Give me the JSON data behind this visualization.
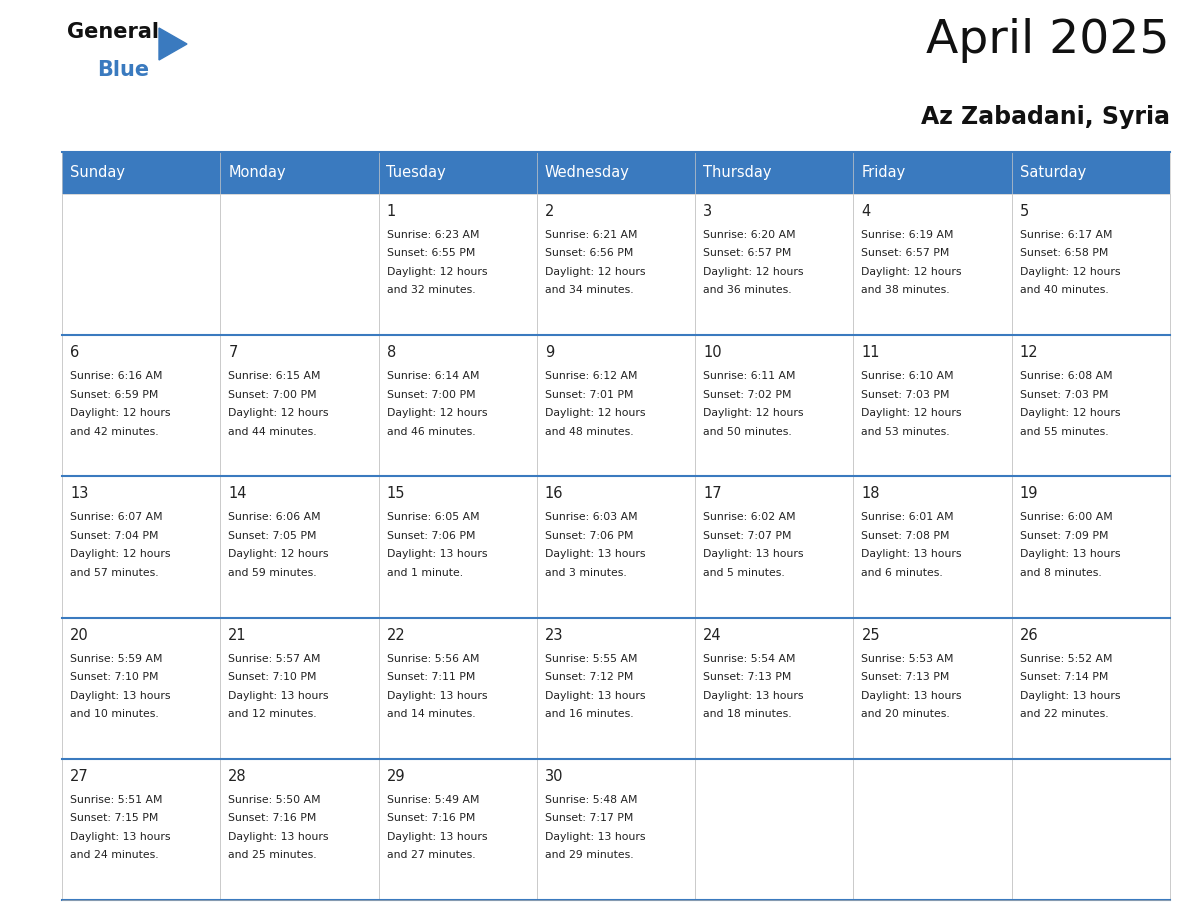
{
  "title": "April 2025",
  "subtitle": "Az Zabadani, Syria",
  "header_color": "#3a7abf",
  "header_text_color": "#ffffff",
  "border_color": "#3a7abf",
  "text_color": "#222222",
  "days_of_week": [
    "Sunday",
    "Monday",
    "Tuesday",
    "Wednesday",
    "Thursday",
    "Friday",
    "Saturday"
  ],
  "calendar_data": [
    [
      {
        "day": "",
        "lines": []
      },
      {
        "day": "",
        "lines": []
      },
      {
        "day": "1",
        "lines": [
          "Sunrise: 6:23 AM",
          "Sunset: 6:55 PM",
          "Daylight: 12 hours",
          "and 32 minutes."
        ]
      },
      {
        "day": "2",
        "lines": [
          "Sunrise: 6:21 AM",
          "Sunset: 6:56 PM",
          "Daylight: 12 hours",
          "and 34 minutes."
        ]
      },
      {
        "day": "3",
        "lines": [
          "Sunrise: 6:20 AM",
          "Sunset: 6:57 PM",
          "Daylight: 12 hours",
          "and 36 minutes."
        ]
      },
      {
        "day": "4",
        "lines": [
          "Sunrise: 6:19 AM",
          "Sunset: 6:57 PM",
          "Daylight: 12 hours",
          "and 38 minutes."
        ]
      },
      {
        "day": "5",
        "lines": [
          "Sunrise: 6:17 AM",
          "Sunset: 6:58 PM",
          "Daylight: 12 hours",
          "and 40 minutes."
        ]
      }
    ],
    [
      {
        "day": "6",
        "lines": [
          "Sunrise: 6:16 AM",
          "Sunset: 6:59 PM",
          "Daylight: 12 hours",
          "and 42 minutes."
        ]
      },
      {
        "day": "7",
        "lines": [
          "Sunrise: 6:15 AM",
          "Sunset: 7:00 PM",
          "Daylight: 12 hours",
          "and 44 minutes."
        ]
      },
      {
        "day": "8",
        "lines": [
          "Sunrise: 6:14 AM",
          "Sunset: 7:00 PM",
          "Daylight: 12 hours",
          "and 46 minutes."
        ]
      },
      {
        "day": "9",
        "lines": [
          "Sunrise: 6:12 AM",
          "Sunset: 7:01 PM",
          "Daylight: 12 hours",
          "and 48 minutes."
        ]
      },
      {
        "day": "10",
        "lines": [
          "Sunrise: 6:11 AM",
          "Sunset: 7:02 PM",
          "Daylight: 12 hours",
          "and 50 minutes."
        ]
      },
      {
        "day": "11",
        "lines": [
          "Sunrise: 6:10 AM",
          "Sunset: 7:03 PM",
          "Daylight: 12 hours",
          "and 53 minutes."
        ]
      },
      {
        "day": "12",
        "lines": [
          "Sunrise: 6:08 AM",
          "Sunset: 7:03 PM",
          "Daylight: 12 hours",
          "and 55 minutes."
        ]
      }
    ],
    [
      {
        "day": "13",
        "lines": [
          "Sunrise: 6:07 AM",
          "Sunset: 7:04 PM",
          "Daylight: 12 hours",
          "and 57 minutes."
        ]
      },
      {
        "day": "14",
        "lines": [
          "Sunrise: 6:06 AM",
          "Sunset: 7:05 PM",
          "Daylight: 12 hours",
          "and 59 minutes."
        ]
      },
      {
        "day": "15",
        "lines": [
          "Sunrise: 6:05 AM",
          "Sunset: 7:06 PM",
          "Daylight: 13 hours",
          "and 1 minute."
        ]
      },
      {
        "day": "16",
        "lines": [
          "Sunrise: 6:03 AM",
          "Sunset: 7:06 PM",
          "Daylight: 13 hours",
          "and 3 minutes."
        ]
      },
      {
        "day": "17",
        "lines": [
          "Sunrise: 6:02 AM",
          "Sunset: 7:07 PM",
          "Daylight: 13 hours",
          "and 5 minutes."
        ]
      },
      {
        "day": "18",
        "lines": [
          "Sunrise: 6:01 AM",
          "Sunset: 7:08 PM",
          "Daylight: 13 hours",
          "and 6 minutes."
        ]
      },
      {
        "day": "19",
        "lines": [
          "Sunrise: 6:00 AM",
          "Sunset: 7:09 PM",
          "Daylight: 13 hours",
          "and 8 minutes."
        ]
      }
    ],
    [
      {
        "day": "20",
        "lines": [
          "Sunrise: 5:59 AM",
          "Sunset: 7:10 PM",
          "Daylight: 13 hours",
          "and 10 minutes."
        ]
      },
      {
        "day": "21",
        "lines": [
          "Sunrise: 5:57 AM",
          "Sunset: 7:10 PM",
          "Daylight: 13 hours",
          "and 12 minutes."
        ]
      },
      {
        "day": "22",
        "lines": [
          "Sunrise: 5:56 AM",
          "Sunset: 7:11 PM",
          "Daylight: 13 hours",
          "and 14 minutes."
        ]
      },
      {
        "day": "23",
        "lines": [
          "Sunrise: 5:55 AM",
          "Sunset: 7:12 PM",
          "Daylight: 13 hours",
          "and 16 minutes."
        ]
      },
      {
        "day": "24",
        "lines": [
          "Sunrise: 5:54 AM",
          "Sunset: 7:13 PM",
          "Daylight: 13 hours",
          "and 18 minutes."
        ]
      },
      {
        "day": "25",
        "lines": [
          "Sunrise: 5:53 AM",
          "Sunset: 7:13 PM",
          "Daylight: 13 hours",
          "and 20 minutes."
        ]
      },
      {
        "day": "26",
        "lines": [
          "Sunrise: 5:52 AM",
          "Sunset: 7:14 PM",
          "Daylight: 13 hours",
          "and 22 minutes."
        ]
      }
    ],
    [
      {
        "day": "27",
        "lines": [
          "Sunrise: 5:51 AM",
          "Sunset: 7:15 PM",
          "Daylight: 13 hours",
          "and 24 minutes."
        ]
      },
      {
        "day": "28",
        "lines": [
          "Sunrise: 5:50 AM",
          "Sunset: 7:16 PM",
          "Daylight: 13 hours",
          "and 25 minutes."
        ]
      },
      {
        "day": "29",
        "lines": [
          "Sunrise: 5:49 AM",
          "Sunset: 7:16 PM",
          "Daylight: 13 hours",
          "and 27 minutes."
        ]
      },
      {
        "day": "30",
        "lines": [
          "Sunrise: 5:48 AM",
          "Sunset: 7:17 PM",
          "Daylight: 13 hours",
          "and 29 minutes."
        ]
      },
      {
        "day": "",
        "lines": []
      },
      {
        "day": "",
        "lines": []
      },
      {
        "day": "",
        "lines": []
      }
    ]
  ],
  "fig_width": 11.88,
  "fig_height": 9.18,
  "dpi": 100
}
